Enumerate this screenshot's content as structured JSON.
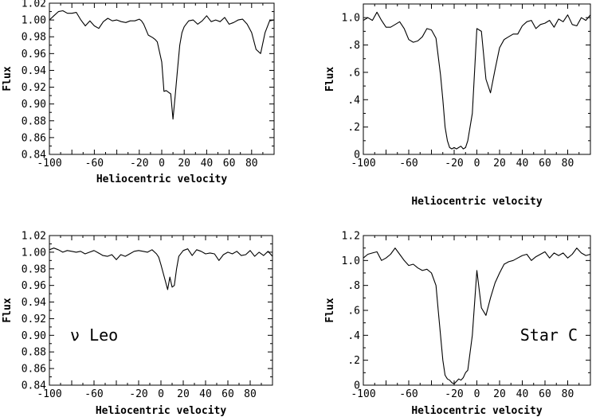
{
  "chart_data": [
    {
      "type": "line",
      "xlabel": "Heliocentric velocity",
      "ylabel": "Flux",
      "xlim": [
        -100,
        100
      ],
      "ylim": [
        0.84,
        1.02
      ],
      "xticks": [
        -100,
        -60,
        -20,
        0,
        20,
        40,
        60,
        80
      ],
      "yticks": [
        0.84,
        0.86,
        0.88,
        0.9,
        0.92,
        0.94,
        0.96,
        0.98,
        1.0,
        1.02
      ],
      "x": [
        -100,
        -96,
        -92,
        -88,
        -84,
        -80,
        -76,
        -72,
        -68,
        -64,
        -60,
        -56,
        -52,
        -48,
        -44,
        -40,
        -36,
        -32,
        -28,
        -24,
        -20,
        -18,
        -16,
        -12,
        -8,
        -6,
        -4,
        -2,
        0,
        2,
        4,
        6,
        8,
        10,
        12,
        14,
        16,
        18,
        20,
        24,
        28,
        32,
        36,
        40,
        44,
        48,
        52,
        56,
        60,
        64,
        68,
        72,
        76,
        80,
        84,
        88,
        92,
        96,
        100
      ],
      "y": [
        1.0,
        1.005,
        1.01,
        1.011,
        1.008,
        1.008,
        1.009,
        1.0,
        0.993,
        0.999,
        0.993,
        0.99,
        0.998,
        1.002,
        0.999,
        1.0,
        0.998,
        0.997,
        0.999,
        0.999,
        1.001,
        0.999,
        0.995,
        0.982,
        0.979,
        0.977,
        0.974,
        0.962,
        0.95,
        0.915,
        0.916,
        0.914,
        0.912,
        0.882,
        0.91,
        0.94,
        0.97,
        0.985,
        0.992,
        0.999,
        1.0,
        0.995,
        0.999,
        1.005,
        0.998,
        1.0,
        0.998,
        1.003,
        0.995,
        0.997,
        1.0,
        1.001,
        0.995,
        0.985,
        0.965,
        0.96,
        0.985,
        0.999,
        1.0
      ]
    },
    {
      "type": "line",
      "xlabel": "Heliocentric velocity",
      "ylabel": "Flux",
      "xlim": [
        -100,
        100
      ],
      "ylim": [
        0,
        1.1
      ],
      "xticks": [
        -100,
        -60,
        -20,
        0,
        20,
        40,
        60,
        80
      ],
      "yticks": [
        0,
        0.2,
        0.4,
        0.6,
        0.8,
        1.0
      ],
      "ytick_labels": [
        "0",
        ".2",
        ".4",
        ".6",
        ".8",
        "1.0"
      ],
      "x": [
        -100,
        -96,
        -92,
        -88,
        -84,
        -80,
        -76,
        -72,
        -68,
        -64,
        -60,
        -56,
        -52,
        -48,
        -44,
        -40,
        -36,
        -32,
        -30,
        -28,
        -26,
        -24,
        -22,
        -20,
        -18,
        -16,
        -14,
        -12,
        -10,
        -8,
        -4,
        0,
        4,
        8,
        12,
        16,
        20,
        24,
        28,
        32,
        36,
        40,
        44,
        48,
        52,
        56,
        60,
        64,
        68,
        72,
        76,
        80,
        84,
        88,
        92,
        96,
        100
      ],
      "y": [
        0.98,
        1.0,
        0.98,
        1.04,
        0.98,
        0.93,
        0.93,
        0.95,
        0.97,
        0.92,
        0.84,
        0.82,
        0.83,
        0.86,
        0.92,
        0.91,
        0.85,
        0.58,
        0.4,
        0.2,
        0.1,
        0.05,
        0.04,
        0.05,
        0.04,
        0.05,
        0.06,
        0.04,
        0.05,
        0.1,
        0.3,
        0.92,
        0.9,
        0.55,
        0.45,
        0.62,
        0.78,
        0.84,
        0.86,
        0.88,
        0.88,
        0.94,
        0.97,
        0.98,
        0.92,
        0.95,
        0.96,
        0.98,
        0.93,
        0.99,
        0.97,
        1.02,
        0.95,
        0.94,
        1.0,
        0.98,
        1.02
      ]
    },
    {
      "type": "line",
      "title": "ν Leo",
      "xlabel": "Heliocentric velocity",
      "ylabel": "Flux",
      "xlim": [
        -100,
        100
      ],
      "ylim": [
        0.84,
        1.02
      ],
      "xticks": [
        -100,
        -60,
        -20,
        0,
        20,
        40,
        60,
        80
      ],
      "yticks": [
        0.84,
        0.86,
        0.88,
        0.9,
        0.92,
        0.94,
        0.96,
        0.98,
        1.0,
        1.02
      ],
      "x": [
        -100,
        -96,
        -92,
        -88,
        -84,
        -80,
        -76,
        -72,
        -68,
        -64,
        -60,
        -56,
        -52,
        -48,
        -44,
        -40,
        -36,
        -32,
        -28,
        -24,
        -20,
        -16,
        -12,
        -8,
        -4,
        -2,
        0,
        2,
        4,
        6,
        8,
        10,
        12,
        14,
        16,
        20,
        24,
        28,
        32,
        36,
        40,
        44,
        48,
        52,
        56,
        60,
        64,
        68,
        72,
        76,
        80,
        84,
        88,
        92,
        96,
        100
      ],
      "y": [
        1.003,
        1.005,
        1.003,
        1.0,
        1.002,
        1.001,
        1.0,
        1.001,
        0.998,
        1.0,
        1.002,
        0.999,
        0.996,
        0.995,
        0.997,
        0.991,
        0.997,
        0.995,
        0.998,
        1.001,
        1.002,
        1.001,
        1.0,
        1.003,
        0.998,
        0.994,
        0.985,
        0.975,
        0.965,
        0.955,
        0.97,
        0.958,
        0.96,
        0.98,
        0.995,
        1.002,
        1.004,
        0.996,
        1.003,
        1.001,
        0.998,
        0.999,
        0.998,
        0.99,
        0.997,
        1.0,
        0.998,
        1.001,
        0.996,
        0.997,
        1.002,
        0.995,
        1.0,
        0.996,
        1.001,
        0.995
      ]
    },
    {
      "type": "line",
      "title": "Star C",
      "xlabel": "Heliocentric velocity",
      "ylabel": "Flux",
      "xlim": [
        -100,
        100
      ],
      "ylim": [
        0,
        1.2
      ],
      "xticks": [
        -100,
        -60,
        -20,
        0,
        20,
        40,
        60,
        80
      ],
      "yticks": [
        0,
        0.2,
        0.4,
        0.6,
        0.8,
        1.0,
        1.2
      ],
      "ytick_labels": [
        "0",
        ".2",
        ".4",
        ".6",
        ".8",
        "1.0",
        "1.2"
      ],
      "x": [
        -100,
        -96,
        -92,
        -88,
        -84,
        -80,
        -76,
        -72,
        -68,
        -64,
        -60,
        -56,
        -52,
        -48,
        -44,
        -40,
        -36,
        -34,
        -32,
        -30,
        -28,
        -26,
        -24,
        -22,
        -20,
        -18,
        -16,
        -14,
        -12,
        -10,
        -8,
        -4,
        0,
        4,
        8,
        12,
        16,
        20,
        24,
        28,
        32,
        36,
        40,
        44,
        48,
        52,
        56,
        60,
        64,
        68,
        72,
        76,
        80,
        84,
        88,
        92,
        96,
        100
      ],
      "y": [
        1.02,
        1.05,
        1.06,
        1.07,
        1.0,
        1.02,
        1.05,
        1.1,
        1.05,
        1.0,
        0.96,
        0.97,
        0.94,
        0.92,
        0.93,
        0.9,
        0.8,
        0.6,
        0.4,
        0.2,
        0.08,
        0.05,
        0.04,
        0.02,
        0.01,
        0.03,
        0.05,
        0.04,
        0.06,
        0.1,
        0.12,
        0.4,
        0.92,
        0.62,
        0.56,
        0.7,
        0.82,
        0.9,
        0.97,
        0.99,
        1.0,
        1.02,
        1.04,
        1.05,
        1.0,
        1.03,
        1.05,
        1.07,
        1.02,
        1.06,
        1.04,
        1.06,
        1.02,
        1.05,
        1.1,
        1.06,
        1.04,
        1.05
      ]
    }
  ]
}
